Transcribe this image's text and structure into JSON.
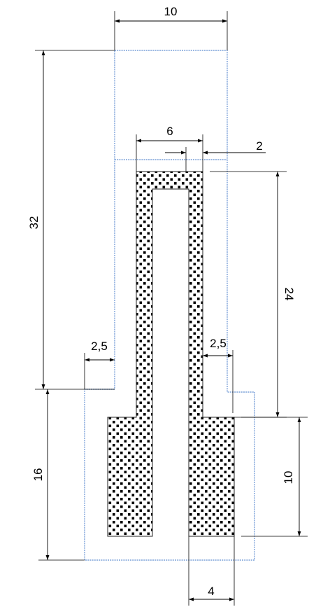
{
  "dimensions": {
    "top_width": "10",
    "inner_width": "6",
    "wall": "2",
    "total_height": "32",
    "slot_depth": "24",
    "left_step": "2,5",
    "right_step": "2,5",
    "bottom_height": "16",
    "foot_height": "10",
    "foot_gap": "4"
  },
  "colors": {
    "outline": "#7aa0d8",
    "fill_dots": "#000000",
    "background": "#ffffff"
  }
}
